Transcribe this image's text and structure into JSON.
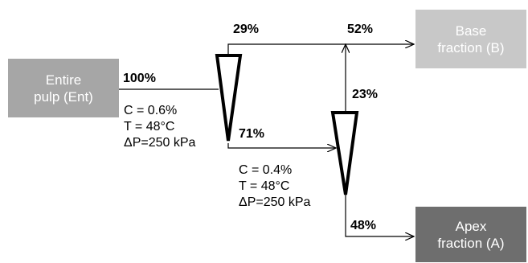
{
  "feed": {
    "line1": "Entire",
    "line2": "pulp (Ent)",
    "color": "#a6a6a6"
  },
  "base": {
    "line1": "Base",
    "line2": "fraction (B)",
    "color": "#c8c8c8"
  },
  "apex": {
    "line1": "Apex",
    "line2": "fraction (A)",
    "color": "#6e6e6e"
  },
  "flows": {
    "feed": "100%",
    "stage1_overflow": "29%",
    "stage1_underflow": "71%",
    "stage2_overflow": "23%",
    "base_total": "52%",
    "apex": "48%"
  },
  "stage1": {
    "consistency": "C = 0.6%",
    "temperature": "T = 48°C",
    "pressure_drop": "ΔP=250 kPa"
  },
  "stage2": {
    "consistency": "C = 0.4%",
    "temperature": "T = 48°C",
    "pressure_drop": "ΔP=250 kPa"
  }
}
